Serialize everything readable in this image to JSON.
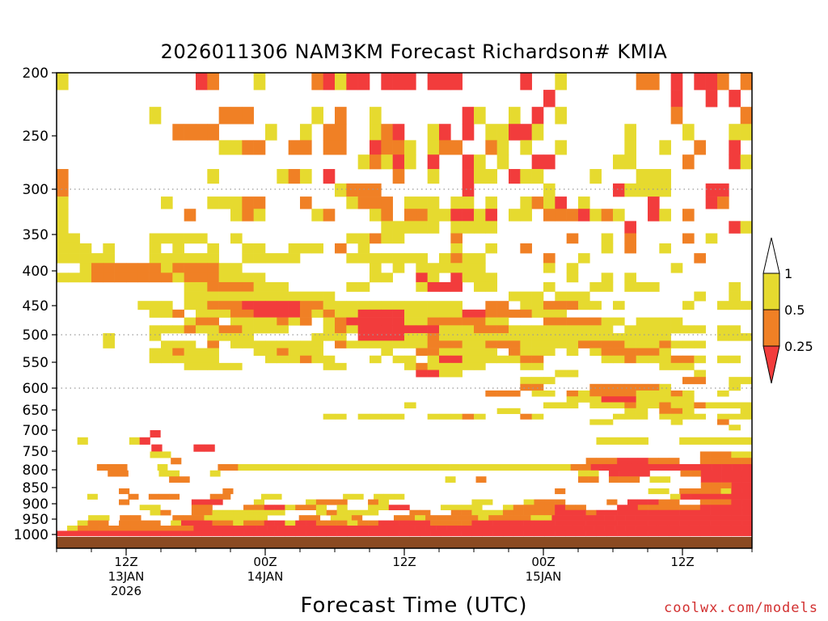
{
  "chart_data": {
    "type": "heatmap",
    "title": "2026011306 NAM3KM Forecast Richardson# KMIA",
    "xlabel": "Forecast Time (UTC)",
    "ylabel": "",
    "credit": "coolwx.com/models",
    "x_range_hours": [
      0,
      60
    ],
    "y_levels": [
      200,
      250,
      300,
      350,
      400,
      450,
      500,
      550,
      600,
      650,
      700,
      750,
      800,
      850,
      900,
      950,
      1000
    ],
    "y_ticks": [
      "200",
      "250",
      "300",
      "350",
      "400",
      "450",
      "500",
      "550",
      "600",
      "650",
      "700",
      "750",
      "800",
      "850",
      "900",
      "950",
      "1000"
    ],
    "gridlines": [
      300,
      500,
      600
    ],
    "x_ticks": [
      {
        "hour": 6,
        "lines": [
          "12Z",
          "13JAN",
          "2026"
        ]
      },
      {
        "hour": 18,
        "lines": [
          "00Z",
          "14JAN"
        ]
      },
      {
        "hour": 30,
        "lines": [
          "12Z"
        ]
      },
      {
        "hour": 42,
        "lines": [
          "00Z",
          "15JAN"
        ]
      },
      {
        "hour": 54,
        "lines": [
          "12Z"
        ]
      }
    ],
    "colorbar": {
      "labels": [
        "1",
        "0.5",
        "0.25"
      ],
      "bins": [
        {
          "range": "0.5-1",
          "color": "#e6da2f"
        },
        {
          "range": "0.25-0.5",
          "color": "#f08025"
        },
        {
          "range": "<0.25",
          "color": "#f23c3c"
        }
      ],
      "over_color": "#ffffff",
      "under_color": "#f23c3c"
    },
    "colors": {
      "y": "#e6da2f",
      "o": "#f08025",
      "r": "#f23c3c",
      "ground": "#8b4a22",
      "grid": "#9a9a9a",
      "credit": "#d23030"
    },
    "level_axis": [
      200,
      225,
      250,
      275,
      300,
      325,
      350,
      375,
      400,
      425,
      450,
      475,
      500,
      525,
      550,
      575,
      600,
      625,
      650,
      675,
      700
    ],
    "time_step_hours": 1,
    "upper_rows": [
      "y...........ro...y....oryrr.rrr.rrr.....r..y......oo.r.rro.o.",
      "..........................................r..........r..r.r.y.",
      "........y.....ooo.....y.o..y.......ry..y.r.y.........o.....o.",
      "..........oooo....y..y.oo..yor..yr.r.yyrry.......y....y...yyy.",
      "..............yyoo..oo.oo..rooy.yoo..oy.y..y.....y..y..o..r.o.",
      "..........................yoyry.r..ry.y..rr.....yy....o...ry..",
      "o............y.....yoy.r.....o..y..ryy.ryy....y...yyy.........",
      "o.......................yooo.......r......y.....ryyyy...rr....",
      "y........y...yyyoo...o...yooo.yyy.yy.y..yoyr.y.....r....ro....",
      "y..........o...yoy....yo...yo.ooyyrryr.yy.oooryoy..ry.o.......",
      "y...........................yyyyy.yyyy...........r........ry..",
      "yy......yyyyy..y.........yyoyy....o.........o..y.o....o.y.....",
      "yyy.y...y.y..y..yy..yyy.o.y.......y..y..o......y.o..y.........",
      "yyyyy...yyyyyy..yyyyy....yyyyyyy.yoyy.....o..y.........o......",
      "..yooooooyooooyy...........y.y.yyyyyy.....y.y........y.......",
      "yyyoooooooyoooyyyy.........yy..ry.ryyy......y..y.y...........",
      "...........yyooooyyy.....yy....yrrr.yy....y...yy.yyy......y...",
      "...........yyyyyyyyyyyyy...............yyy.yyy.........y..y....",
      ".......yyy.yyooorrrrrooyyyyyyyyyyyy..oo.yyoooyy.y.....y..yyyy.",
      "........yyo.yyyoorrrroyoyyrrrryyyyyrrooooyyy...................",
      "...........yoo.yyyyoyo.yorrrrryyoooooyy...oooooyy.yyyy.......y.",
      "........yyyoyyooyyyy...yoyrrrrrrryyyoooyyyyyyyyy.yyyyyyy.yy...y.",
      "....y...y....yyyy.....yyy.rrrryyoyyyyyyyyyyyyyyyyyyyy....yyy.yr.",
      "....y....yyy.o.yyyyyyyy.oyyyyyyyoooyyoooyyyyyooooyyyoyyy....yy..",
      "........yyoyyy...yyoyyy.....y..ooyyyyy.oyyy.y.yoooooy........oy.",
      "........yyyyyy....yyyoyy...y.yy.yrryyyyyoo.....yyoyyyooy.yy...y.",
      "...........yyyyy.......yy.....yoyyyyy...yy..........yyy.....yyy.",
      "...............................rryy........yy..........y....yoo.",
      "........................................yyy...........oo..yy..yoo",
      "........................................oo....ooooooy.....y...oyy",
      ".....................................ooo.yy.oyooooyyyoy..y...y..y",
      "............................................yyyrrryyyyy.....y.yy",
      "..............................y...........yyy.yyyoyyoyyoyyyyy...",
      "......................................yy.........yy.ooy....yy.o.",
      ".......................yy.yyyy..yyyoy...oy......yyy.yyyy.yyyyyy.r",
      "..............................................yy.....y...o......",
      "..........................................................y......"
    ],
    "lower_rows": [
      ".........r.........................................................",
      "..y....yr...........................................yyyyy...yyyyyyy",
      ".........r...rr...................................................",
      ".........yy...................................................oooyy",
      "...........o.......................................ooorrrooo..ooooo",
      "....ooo...y.....ooyyyyyyyyyyyyyyyyyyyyyyyyyyyyyyyyyoorrrrrrrrrrrrrrrr",
      ".....oo...yy...y...................................yy.rrrr...oorrrrr",
      "...........oo.........................y..o.........oo.ooo.yy...rrrrr",
      "...............................................................ooorr",
      "......o.........o...............................o........yy.ooooyrr",
      "...y...o.ooo...oo...yy......yy.yyy..........................yrrrrrrr",
      "......o......rrr...y....yooo..oy........yy...yooo....o.rrroo..ooorr",
      "........yy...oo...oorryooy.y..yyrr...yyyy..yooooroo...rroooooorrrrr",
      ".........yo..ooyyyyyyy...yoyyyy...oo..ooyyyooooorrrorrrrrrrrrrrrrrr",
      "...yy.oo...oooyyyyyy...oo.yyo...ooyoooooyooooyyrrrrrrrrrrrrrrrrrrr",
      "..yoo.oooo.yrrrooyoorryrroooyoorrrrroooorrrrrrrrrrrrrrrrrrrrrrrrrrr",
      ".yooooooooooorrrrrrrrrrrrrrrrrrrrrrrrrrrrrrrrrrrrrrrrrrrrrrrrrrrrr",
      "rrrrrrrrrrrrrrrrrrrrrrrrrrrrrrrrrrrrrrrrrrrrrrrrrrrrrrrrrrrrrrrrrrr"
    ]
  }
}
